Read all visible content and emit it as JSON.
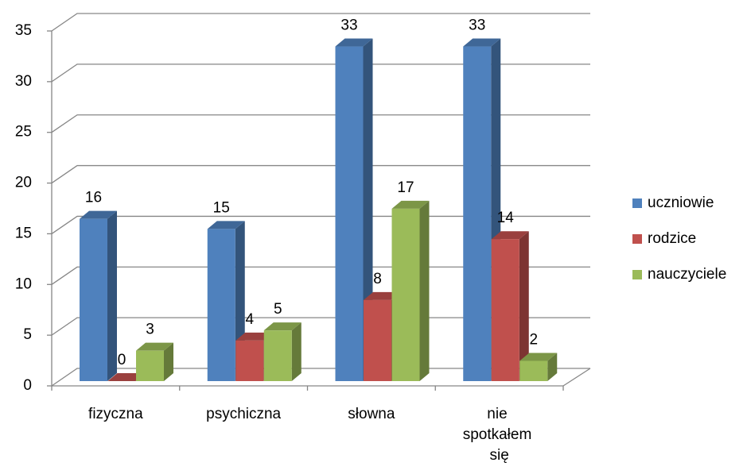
{
  "chart_data": {
    "type": "bar3d",
    "categories": [
      "fizyczna",
      "psychiczna",
      "słowna",
      "nie spotkałem się"
    ],
    "series": [
      {
        "name": "uczniowie",
        "color": "#4f81bd",
        "values": [
          16,
          15,
          33,
          33
        ]
      },
      {
        "name": "rodzice",
        "color": "#c0504d",
        "values": [
          0,
          4,
          8,
          14
        ]
      },
      {
        "name": "nauczyciele",
        "color": "#9bbb59",
        "values": [
          3,
          5,
          17,
          2
        ]
      }
    ],
    "ylim": [
      0,
      35
    ],
    "yticks": [
      0,
      5,
      10,
      15,
      20,
      25,
      30,
      35
    ],
    "grid": true,
    "legend": "right"
  }
}
